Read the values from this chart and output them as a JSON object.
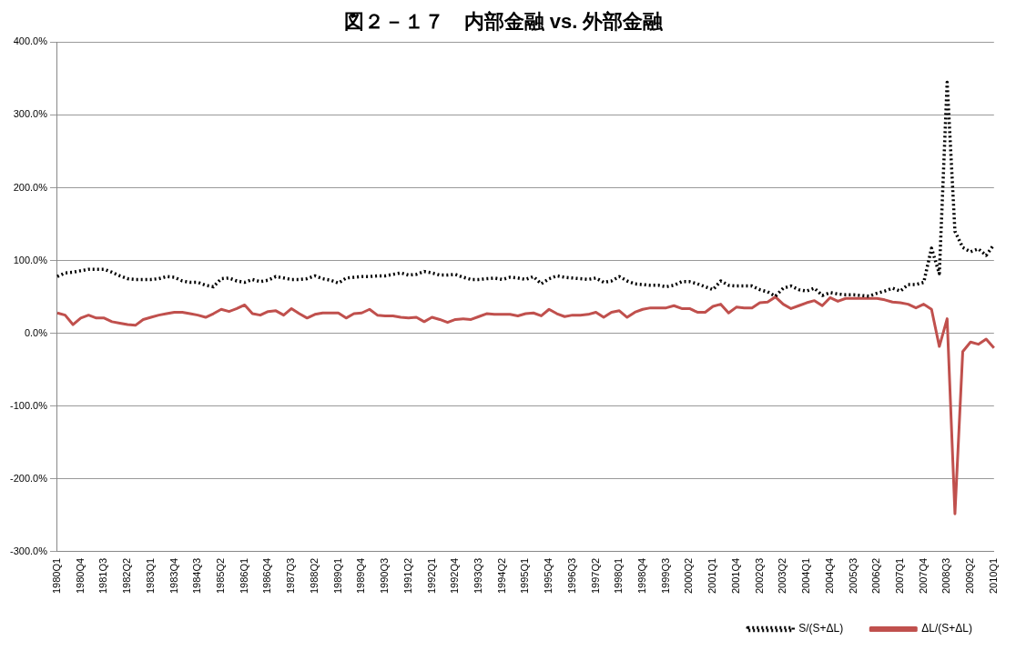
{
  "chart_data": {
    "type": "line",
    "title": "図２－１７　内部金融 vs. 外部金融",
    "categories": [
      "1980Q1",
      null,
      null,
      "1980Q4",
      null,
      null,
      "1981Q3",
      null,
      null,
      "1982Q2",
      null,
      null,
      "1983Q1",
      null,
      null,
      "1983Q4",
      null,
      null,
      "1984Q3",
      null,
      null,
      "1985Q2",
      null,
      null,
      "1986Q1",
      null,
      null,
      "1986Q4",
      null,
      null,
      "1987Q3",
      null,
      null,
      "1988Q2",
      null,
      null,
      "1989Q1",
      null,
      null,
      "1989Q4",
      null,
      null,
      "1990Q3",
      null,
      null,
      "1991Q2",
      null,
      null,
      "1992Q1",
      null,
      null,
      "1992Q4",
      null,
      null,
      "1993Q3",
      null,
      null,
      "1994Q2",
      null,
      null,
      "1995Q1",
      null,
      null,
      "1995Q4",
      null,
      null,
      "1996Q3",
      null,
      null,
      "1997Q2",
      null,
      null,
      "1998Q1",
      null,
      null,
      "1998Q4",
      null,
      null,
      "1999Q3",
      null,
      null,
      "2000Q2",
      null,
      null,
      "2001Q1",
      null,
      null,
      "2001Q4",
      null,
      null,
      "2002Q3",
      null,
      null,
      "2003Q2",
      null,
      null,
      "2004Q1",
      null,
      null,
      "2004Q4",
      null,
      null,
      "2005Q3",
      null,
      null,
      "2006Q2",
      null,
      null,
      "2007Q1",
      null,
      null,
      "2007Q4",
      null,
      null,
      "2008Q3",
      null,
      null,
      "2009Q2",
      null,
      null,
      "2010Q1"
    ],
    "series": [
      {
        "name": "S/(S+ΔL)",
        "color": "#000000",
        "line_style": "dotted",
        "values": [
          78,
          83,
          84,
          86,
          88,
          88,
          88,
          84,
          79,
          75,
          74,
          74,
          74,
          75,
          78,
          77,
          72,
          70,
          70,
          66,
          64,
          75,
          76,
          72,
          70,
          74,
          71,
          73,
          78,
          76,
          74,
          74,
          75,
          79,
          75,
          73,
          69,
          76,
          77,
          78,
          78,
          79,
          79,
          81,
          83,
          80,
          81,
          85,
          83,
          80,
          80,
          81,
          77,
          74,
          74,
          75,
          76,
          74,
          77,
          76,
          74,
          78,
          68,
          75,
          79,
          77,
          76,
          75,
          74,
          76,
          70,
          72,
          78,
          72,
          68,
          67,
          66,
          66,
          64,
          66,
          71,
          71,
          68,
          64,
          60,
          72,
          66,
          65,
          65,
          65,
          60,
          57,
          51,
          62,
          65,
          60,
          58,
          62,
          52,
          56,
          54,
          53,
          53,
          52,
          51,
          55,
          58,
          62,
          58,
          67,
          67,
          70,
          117,
          82,
          345,
          140,
          118,
          112,
          116,
          107,
          122
        ]
      },
      {
        "name": "ΔL/(S+ΔL)",
        "color": "#c0504d",
        "line_style": "solid",
        "values": [
          28,
          25,
          12,
          21,
          25,
          21,
          21,
          16,
          14,
          12,
          11,
          19,
          22,
          25,
          27,
          29,
          29,
          27,
          25,
          22,
          27,
          33,
          30,
          34,
          39,
          27,
          25,
          30,
          31,
          25,
          34,
          27,
          21,
          26,
          28,
          28,
          28,
          21,
          27,
          28,
          33,
          25,
          24,
          24,
          22,
          21,
          22,
          16,
          22,
          19,
          15,
          19,
          20,
          19,
          23,
          27,
          26,
          26,
          26,
          24,
          27,
          28,
          24,
          33,
          27,
          23,
          25,
          25,
          26,
          29,
          22,
          29,
          31,
          22,
          29,
          33,
          35,
          35,
          35,
          38,
          34,
          34,
          29,
          29,
          37,
          40,
          28,
          36,
          35,
          35,
          42,
          43,
          50,
          40,
          34,
          38,
          42,
          45,
          38,
          49,
          44,
          48,
          48,
          48,
          48,
          48,
          46,
          43,
          42,
          40,
          35,
          40,
          33,
          -18,
          20,
          -248,
          -25,
          -12,
          -15,
          -8,
          -20
        ]
      }
    ],
    "ylim": [
      -300,
      400
    ],
    "yticks": [
      {
        "value": -300,
        "label": "-300.0%"
      },
      {
        "value": -200,
        "label": "-200.0%"
      },
      {
        "value": -100,
        "label": "-100.0%"
      },
      {
        "value": 0,
        "label": "0.0%"
      },
      {
        "value": 100,
        "label": "100.0%"
      },
      {
        "value": 200,
        "label": "200.0%"
      },
      {
        "value": 300,
        "label": "300.0%"
      },
      {
        "value": 400,
        "label": "400.0%"
      }
    ],
    "grid": "y",
    "legend": "bottom right",
    "marker": "none"
  }
}
